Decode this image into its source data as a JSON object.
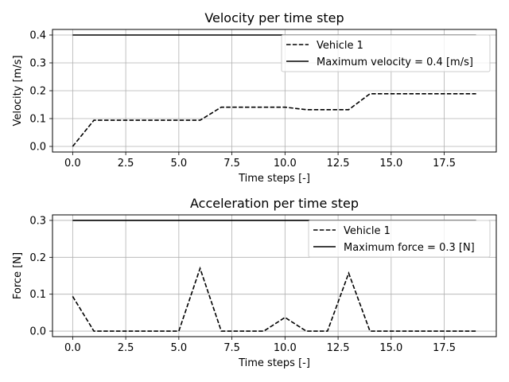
{
  "chart_data": [
    {
      "type": "line",
      "title": "Velocity per time step",
      "xlabel": "Time steps [-]",
      "ylabel": "Velocity [m/s]",
      "xlim": [
        -0.95,
        19.95
      ],
      "ylim": [
        -0.02,
        0.42
      ],
      "xticks": [
        0,
        2.5,
        5,
        7.5,
        10,
        12.5,
        15,
        17.5
      ],
      "xtick_labels": [
        "0.0",
        "2.5",
        "5.0",
        "7.5",
        "10.0",
        "12.5",
        "15.0",
        "17.5"
      ],
      "yticks": [
        0,
        0.1,
        0.2,
        0.3,
        0.4
      ],
      "ytick_labels": [
        "0.0",
        "0.1",
        "0.2",
        "0.3",
        "0.4"
      ],
      "grid": true,
      "legend_position": "top-right",
      "series": [
        {
          "name": "Vehicle 1",
          "style": "dashed",
          "color": "#000000",
          "x": [
            0,
            1,
            2,
            3,
            4,
            5,
            6,
            7,
            8,
            9,
            10,
            11,
            12,
            13,
            14,
            15,
            16,
            17,
            18,
            19
          ],
          "y": [
            0,
            0.094,
            0.094,
            0.094,
            0.094,
            0.094,
            0.094,
            0.141,
            0.141,
            0.141,
            0.141,
            0.132,
            0.132,
            0.132,
            0.189,
            0.189,
            0.189,
            0.189,
            0.189,
            0.189
          ]
        },
        {
          "name": "Maximum velocity = 0.4 [m/s]",
          "style": "solid",
          "color": "#000000",
          "x": [
            0,
            19
          ],
          "y": [
            0.4,
            0.4
          ]
        }
      ]
    },
    {
      "type": "line",
      "title": "Acceleration per time step",
      "xlabel": "Time steps [-]",
      "ylabel": "Force [N]",
      "xlim": [
        -0.95,
        19.95
      ],
      "ylim": [
        -0.015,
        0.315
      ],
      "xticks": [
        0,
        2.5,
        5,
        7.5,
        10,
        12.5,
        15,
        17.5
      ],
      "xtick_labels": [
        "0.0",
        "2.5",
        "5.0",
        "7.5",
        "10.0",
        "12.5",
        "15.0",
        "17.5"
      ],
      "yticks": [
        0,
        0.1,
        0.2,
        0.3
      ],
      "ytick_labels": [
        "0.0",
        "0.1",
        "0.2",
        "0.3"
      ],
      "grid": true,
      "legend_position": "top-right",
      "series": [
        {
          "name": "Vehicle 1",
          "style": "dashed",
          "color": "#000000",
          "x": [
            0,
            1,
            2,
            3,
            4,
            5,
            6,
            7,
            8,
            9,
            10,
            11,
            12,
            13,
            14,
            15,
            16,
            17,
            18,
            19
          ],
          "y": [
            0.094,
            0,
            0,
            0,
            0,
            0,
            0.17,
            0,
            0,
            0,
            0.037,
            0,
            0,
            0.157,
            0,
            0,
            0,
            0,
            0,
            0
          ]
        },
        {
          "name": "Maximum force = 0.3 [N]",
          "style": "solid",
          "color": "#000000",
          "x": [
            0,
            19
          ],
          "y": [
            0.3,
            0.3
          ]
        }
      ]
    }
  ]
}
